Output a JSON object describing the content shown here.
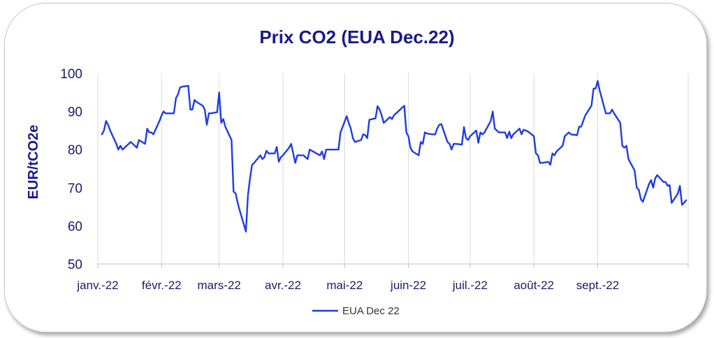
{
  "chart_data": {
    "type": "line",
    "title": "Prix CO2 (EUA Dec.22)",
    "ylabel": "EUR/tCO2e",
    "xlabel": "",
    "ylim": [
      50,
      100
    ],
    "yticks": [
      50,
      60,
      70,
      80,
      90,
      100
    ],
    "xticks": [
      "janv.-22",
      "févr.-22",
      "mars-22",
      "avr.-22",
      "mai-22",
      "juin-22",
      "juil.-22",
      "août-22",
      "sept.-22"
    ],
    "grid": "vertical",
    "legend_position": "bottom",
    "series": [
      {
        "name": "EUA Dec 22",
        "color": "#1f3be6",
        "points": [
          [
            "2022-01-03",
            84
          ],
          [
            "2022-01-04",
            85
          ],
          [
            "2022-01-05",
            87.5
          ],
          [
            "2022-01-06",
            86.5
          ],
          [
            "2022-01-07",
            85
          ],
          [
            "2022-01-10",
            81.5
          ],
          [
            "2022-01-11",
            80
          ],
          [
            "2022-01-12",
            81
          ],
          [
            "2022-01-13",
            80
          ],
          [
            "2022-01-14",
            80.5
          ],
          [
            "2022-01-17",
            82
          ],
          [
            "2022-01-18",
            81.5
          ],
          [
            "2022-01-19",
            81
          ],
          [
            "2022-01-20",
            80.5
          ],
          [
            "2022-01-21",
            82.5
          ],
          [
            "2022-01-24",
            81.5
          ],
          [
            "2022-01-25",
            85.5
          ],
          [
            "2022-01-26",
            84.5
          ],
          [
            "2022-01-27",
            84.5
          ],
          [
            "2022-01-28",
            84
          ],
          [
            "2022-01-31",
            87.5
          ],
          [
            "2022-02-01",
            89
          ],
          [
            "2022-02-02",
            90
          ],
          [
            "2022-02-03",
            89.5
          ],
          [
            "2022-02-04",
            89.5
          ],
          [
            "2022-02-07",
            89.5
          ],
          [
            "2022-02-08",
            93.5
          ],
          [
            "2022-02-09",
            94.5
          ],
          [
            "2022-02-10",
            96.3
          ],
          [
            "2022-02-11",
            96.5
          ],
          [
            "2022-02-14",
            96.7
          ],
          [
            "2022-02-15",
            90.5
          ],
          [
            "2022-02-16",
            90.5
          ],
          [
            "2022-02-17",
            93
          ],
          [
            "2022-02-18",
            92.5
          ],
          [
            "2022-02-21",
            91.5
          ],
          [
            "2022-02-22",
            90.5
          ],
          [
            "2022-02-23",
            86.5
          ],
          [
            "2022-02-24",
            89.5
          ],
          [
            "2022-02-25",
            89.5
          ],
          [
            "2022-02-28",
            89.8
          ],
          [
            "2022-03-01",
            95
          ],
          [
            "2022-03-02",
            87
          ],
          [
            "2022-03-03",
            88
          ],
          [
            "2022-03-04",
            86
          ],
          [
            "2022-03-07",
            82.5
          ],
          [
            "2022-03-08",
            69
          ],
          [
            "2022-03-09",
            68.5
          ],
          [
            "2022-03-10",
            66
          ],
          [
            "2022-03-11",
            64
          ],
          [
            "2022-03-14",
            58.5
          ],
          [
            "2022-03-15",
            68
          ],
          [
            "2022-03-16",
            72.5
          ],
          [
            "2022-03-17",
            76
          ],
          [
            "2022-03-18",
            76.5
          ],
          [
            "2022-03-21",
            78.5
          ],
          [
            "2022-03-22",
            77.5
          ],
          [
            "2022-03-23",
            78
          ],
          [
            "2022-03-24",
            79.7
          ],
          [
            "2022-03-25",
            79
          ],
          [
            "2022-03-28",
            79
          ],
          [
            "2022-03-29",
            80.7
          ],
          [
            "2022-03-30",
            76.8
          ],
          [
            "2022-03-31",
            78
          ],
          [
            "2022-04-01",
            78.5
          ],
          [
            "2022-04-04",
            80.5
          ],
          [
            "2022-04-05",
            81.5
          ],
          [
            "2022-04-06",
            79
          ],
          [
            "2022-04-07",
            76.5
          ],
          [
            "2022-04-08",
            78.5
          ],
          [
            "2022-04-11",
            78.5
          ],
          [
            "2022-04-12",
            78
          ],
          [
            "2022-04-13",
            77.5
          ],
          [
            "2022-04-14",
            80
          ],
          [
            "2022-04-19",
            78.5
          ],
          [
            "2022-04-20",
            79.5
          ],
          [
            "2022-04-21",
            77.5
          ],
          [
            "2022-04-22",
            80
          ],
          [
            "2022-04-25",
            80
          ],
          [
            "2022-04-26",
            80
          ],
          [
            "2022-04-27",
            80
          ],
          [
            "2022-04-28",
            80
          ],
          [
            "2022-04-29",
            84.5
          ],
          [
            "2022-05-02",
            88.8
          ],
          [
            "2022-05-03",
            87
          ],
          [
            "2022-05-04",
            85.5
          ],
          [
            "2022-05-05",
            83
          ],
          [
            "2022-05-06",
            82
          ],
          [
            "2022-05-09",
            82.5
          ],
          [
            "2022-05-10",
            84
          ],
          [
            "2022-05-11",
            83.8
          ],
          [
            "2022-05-12",
            83
          ],
          [
            "2022-05-13",
            87.8
          ],
          [
            "2022-05-16",
            88.2
          ],
          [
            "2022-05-17",
            91.4
          ],
          [
            "2022-05-18",
            90.5
          ],
          [
            "2022-05-19",
            89
          ],
          [
            "2022-05-20",
            87
          ],
          [
            "2022-05-23",
            88.5
          ],
          [
            "2022-05-24",
            88
          ],
          [
            "2022-05-25",
            89
          ],
          [
            "2022-05-26",
            89.5
          ],
          [
            "2022-05-27",
            90
          ],
          [
            "2022-05-30",
            91.5
          ],
          [
            "2022-05-31",
            84.5
          ],
          [
            "2022-06-01",
            83.5
          ],
          [
            "2022-06-02",
            80.5
          ],
          [
            "2022-06-03",
            79.5
          ],
          [
            "2022-06-06",
            78.5
          ],
          [
            "2022-06-07",
            82
          ],
          [
            "2022-06-08",
            81.5
          ],
          [
            "2022-06-09",
            84.5
          ],
          [
            "2022-06-10",
            84.2
          ],
          [
            "2022-06-13",
            84
          ],
          [
            "2022-06-14",
            84
          ],
          [
            "2022-06-15",
            85.5
          ],
          [
            "2022-06-16",
            86.5
          ],
          [
            "2022-06-17",
            86.7
          ],
          [
            "2022-06-20",
            82
          ],
          [
            "2022-06-21",
            81.5
          ],
          [
            "2022-06-22",
            80
          ],
          [
            "2022-06-23",
            81.5
          ],
          [
            "2022-06-24",
            81.5
          ],
          [
            "2022-06-27",
            81.3
          ],
          [
            "2022-06-28",
            85.9
          ],
          [
            "2022-06-29",
            83
          ],
          [
            "2022-06-30",
            82.5
          ],
          [
            "2022-07-01",
            83.5
          ],
          [
            "2022-07-04",
            85
          ],
          [
            "2022-07-05",
            81.8
          ],
          [
            "2022-07-06",
            84.5
          ],
          [
            "2022-07-07",
            84
          ],
          [
            "2022-07-08",
            84.5
          ],
          [
            "2022-07-11",
            87.5
          ],
          [
            "2022-07-12",
            90
          ],
          [
            "2022-07-13",
            85.5
          ],
          [
            "2022-07-14",
            85
          ],
          [
            "2022-07-15",
            84.5
          ],
          [
            "2022-07-18",
            84.5
          ],
          [
            "2022-07-19",
            83
          ],
          [
            "2022-07-20",
            84.7
          ],
          [
            "2022-07-21",
            83
          ],
          [
            "2022-07-22",
            84
          ],
          [
            "2022-07-25",
            85.5
          ],
          [
            "2022-07-26",
            84
          ],
          [
            "2022-07-27",
            85.2
          ],
          [
            "2022-07-28",
            85
          ],
          [
            "2022-07-29",
            84.8
          ],
          [
            "2022-08-01",
            83.5
          ],
          [
            "2022-08-02",
            79
          ],
          [
            "2022-08-03",
            78.5
          ],
          [
            "2022-08-04",
            76.5
          ],
          [
            "2022-08-05",
            76.5
          ],
          [
            "2022-08-08",
            76.8
          ],
          [
            "2022-08-09",
            76
          ],
          [
            "2022-08-10",
            79
          ],
          [
            "2022-08-11",
            78.5
          ],
          [
            "2022-08-12",
            79.5
          ],
          [
            "2022-08-15",
            81
          ],
          [
            "2022-08-16",
            83.5
          ],
          [
            "2022-08-17",
            84
          ],
          [
            "2022-08-18",
            84.5
          ],
          [
            "2022-08-19",
            84
          ],
          [
            "2022-08-22",
            83.8
          ],
          [
            "2022-08-23",
            86
          ],
          [
            "2022-08-24",
            86
          ],
          [
            "2022-08-25",
            87.5
          ],
          [
            "2022-08-26",
            89
          ],
          [
            "2022-08-29",
            91.5
          ],
          [
            "2022-08-30",
            96
          ],
          [
            "2022-08-31",
            96
          ],
          [
            "2022-09-01",
            98
          ],
          [
            "2022-09-02",
            95.5
          ],
          [
            "2022-09-05",
            89.5
          ],
          [
            "2022-09-06",
            89.5
          ],
          [
            "2022-09-07",
            89.5
          ],
          [
            "2022-09-08",
            90.5
          ],
          [
            "2022-09-09",
            89.5
          ],
          [
            "2022-09-12",
            87
          ],
          [
            "2022-09-13",
            81
          ],
          [
            "2022-09-14",
            80.5
          ],
          [
            "2022-09-15",
            81
          ],
          [
            "2022-09-16",
            77.5
          ],
          [
            "2022-09-19",
            74.5
          ],
          [
            "2022-09-20",
            70
          ],
          [
            "2022-09-21",
            69.5
          ],
          [
            "2022-09-22",
            67
          ],
          [
            "2022-09-23",
            66.3
          ],
          [
            "2022-09-26",
            71
          ],
          [
            "2022-09-27",
            72
          ],
          [
            "2022-09-28",
            70
          ],
          [
            "2022-09-29",
            72.5
          ],
          [
            "2022-09-30",
            73.3
          ],
          [
            "2022-10-03",
            71.5
          ],
          [
            "2022-10-04",
            71.5
          ],
          [
            "2022-10-05",
            70.5
          ],
          [
            "2022-10-06",
            70.7
          ],
          [
            "2022-10-07",
            66
          ],
          [
            "2022-10-10",
            68.5
          ],
          [
            "2022-10-11",
            70.5
          ],
          [
            "2022-10-12",
            65.5
          ],
          [
            "2022-10-13",
            66
          ],
          [
            "2022-10-14",
            66.7
          ]
        ]
      }
    ]
  }
}
